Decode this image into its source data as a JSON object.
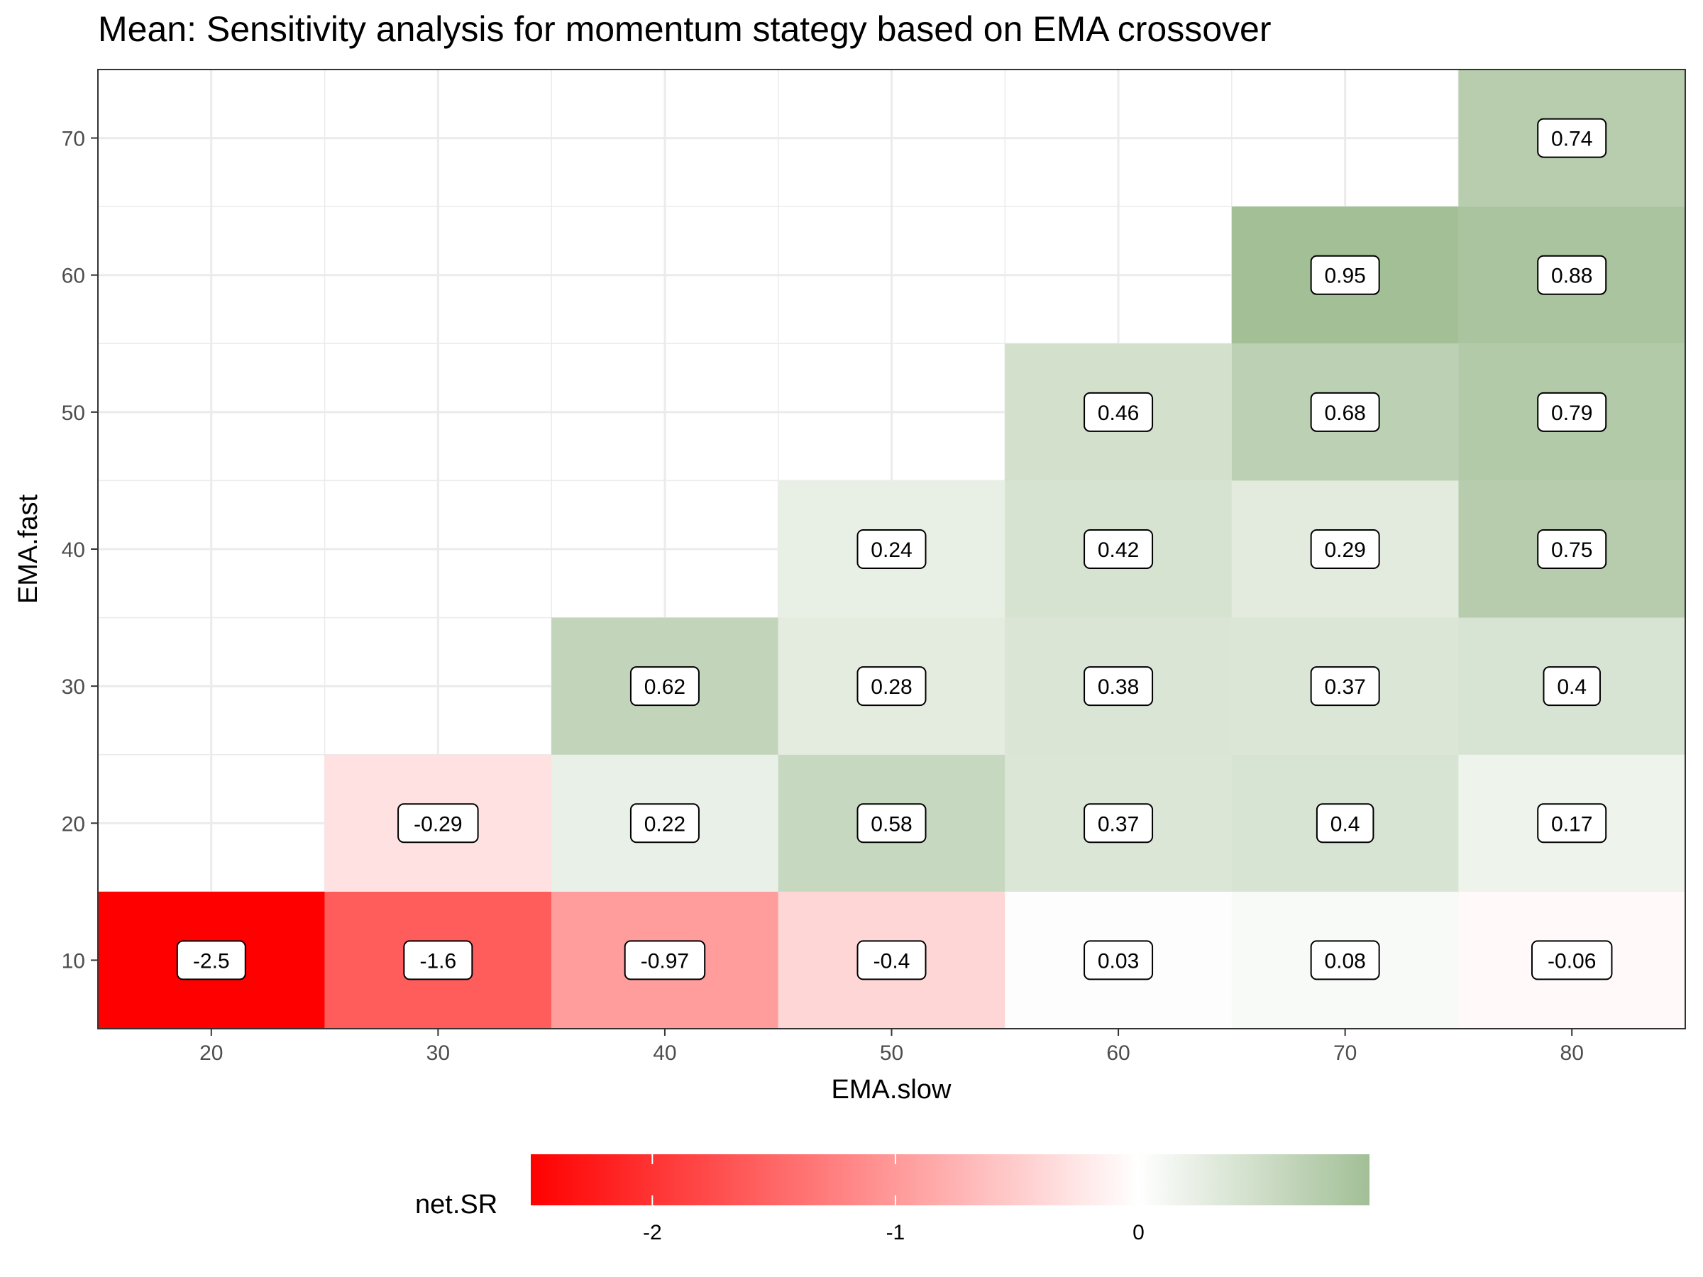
{
  "chart_data": {
    "type": "heatmap",
    "title": "Mean: Sensitivity analysis for momentum stategy based on EMA crossover",
    "xlabel": "EMA.slow",
    "ylabel": "EMA.fast",
    "x_ticks": [
      20,
      30,
      40,
      50,
      60,
      70,
      80
    ],
    "y_ticks": [
      10,
      20,
      30,
      40,
      50,
      60,
      70
    ],
    "xlim": [
      15,
      85
    ],
    "ylim": [
      5,
      75
    ],
    "grid": true,
    "legend": {
      "title": "net.SR",
      "position": "bottom",
      "ticks": [
        -2,
        -1,
        0
      ],
      "min": -2.5,
      "max": 0.95,
      "colors": {
        "low": "#ff0000",
        "mid": "#ffffff",
        "high": "#a2bf96"
      }
    },
    "cells": [
      {
        "slow": 20,
        "fast": 10,
        "value": -2.5,
        "label": "-2.5"
      },
      {
        "slow": 30,
        "fast": 10,
        "value": -1.6,
        "label": "-1.6"
      },
      {
        "slow": 40,
        "fast": 10,
        "value": -0.97,
        "label": "-0.97"
      },
      {
        "slow": 50,
        "fast": 10,
        "value": -0.4,
        "label": "-0.4"
      },
      {
        "slow": 60,
        "fast": 10,
        "value": 0.03,
        "label": "0.03"
      },
      {
        "slow": 70,
        "fast": 10,
        "value": 0.08,
        "label": "0.08"
      },
      {
        "slow": 80,
        "fast": 10,
        "value": -0.06,
        "label": "-0.06"
      },
      {
        "slow": 30,
        "fast": 20,
        "value": -0.29,
        "label": "-0.29"
      },
      {
        "slow": 40,
        "fast": 20,
        "value": 0.22,
        "label": "0.22"
      },
      {
        "slow": 50,
        "fast": 20,
        "value": 0.58,
        "label": "0.58"
      },
      {
        "slow": 60,
        "fast": 20,
        "value": 0.37,
        "label": "0.37"
      },
      {
        "slow": 70,
        "fast": 20,
        "value": 0.4,
        "label": "0.4"
      },
      {
        "slow": 80,
        "fast": 20,
        "value": 0.17,
        "label": "0.17"
      },
      {
        "slow": 40,
        "fast": 30,
        "value": 0.62,
        "label": "0.62"
      },
      {
        "slow": 50,
        "fast": 30,
        "value": 0.28,
        "label": "0.28"
      },
      {
        "slow": 60,
        "fast": 30,
        "value": 0.38,
        "label": "0.38"
      },
      {
        "slow": 70,
        "fast": 30,
        "value": 0.37,
        "label": "0.37"
      },
      {
        "slow": 80,
        "fast": 30,
        "value": 0.4,
        "label": "0.4"
      },
      {
        "slow": 50,
        "fast": 40,
        "value": 0.24,
        "label": "0.24"
      },
      {
        "slow": 60,
        "fast": 40,
        "value": 0.42,
        "label": "0.42"
      },
      {
        "slow": 70,
        "fast": 40,
        "value": 0.29,
        "label": "0.29"
      },
      {
        "slow": 80,
        "fast": 40,
        "value": 0.75,
        "label": "0.75"
      },
      {
        "slow": 60,
        "fast": 50,
        "value": 0.46,
        "label": "0.46"
      },
      {
        "slow": 70,
        "fast": 50,
        "value": 0.68,
        "label": "0.68"
      },
      {
        "slow": 80,
        "fast": 50,
        "value": 0.79,
        "label": "0.79"
      },
      {
        "slow": 70,
        "fast": 60,
        "value": 0.95,
        "label": "0.95"
      },
      {
        "slow": 80,
        "fast": 60,
        "value": 0.88,
        "label": "0.88"
      },
      {
        "slow": 80,
        "fast": 70,
        "value": 0.74,
        "label": "0.74"
      }
    ]
  }
}
